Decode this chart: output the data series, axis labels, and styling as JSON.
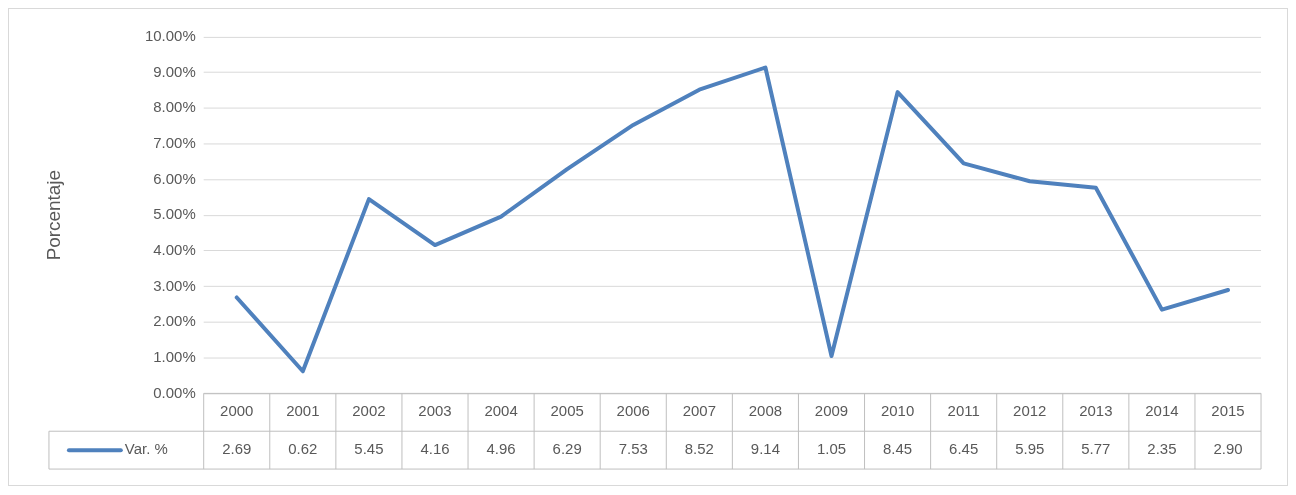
{
  "chart_data": {
    "type": "line",
    "ylabel": "Porcentaje",
    "categories": [
      "2000",
      "2001",
      "2002",
      "2003",
      "2004",
      "2005",
      "2006",
      "2007",
      "2008",
      "2009",
      "2010",
      "2011",
      "2012",
      "2013",
      "2014",
      "2015"
    ],
    "series": [
      {
        "name": "Var. %",
        "color": "#4f81bd",
        "values": [
          2.69,
          0.62,
          5.45,
          4.16,
          4.96,
          6.29,
          7.53,
          8.52,
          9.14,
          1.05,
          8.45,
          6.45,
          5.95,
          5.77,
          2.35,
          2.9
        ],
        "value_labels": [
          "2.69",
          "0.62",
          "5.45",
          "4.16",
          "4.96",
          "6.29",
          "7.53",
          "8.52",
          "9.14",
          "1.05",
          "8.45",
          "6.45",
          "5.95",
          "5.77",
          "2.35",
          "2.90"
        ]
      }
    ],
    "ylim": [
      0,
      10
    ],
    "yticks": [
      {
        "value": 0,
        "label": "0.00%"
      },
      {
        "value": 1,
        "label": "1.00%"
      },
      {
        "value": 2,
        "label": "2.00%"
      },
      {
        "value": 3,
        "label": "3.00%"
      },
      {
        "value": 4,
        "label": "4.00%"
      },
      {
        "value": 5,
        "label": "5.00%"
      },
      {
        "value": 6,
        "label": "6.00%"
      },
      {
        "value": 7,
        "label": "7.00%"
      },
      {
        "value": 8,
        "label": "8.00%"
      },
      {
        "value": 9,
        "label": "9.00%"
      },
      {
        "value": 10,
        "label": "10.00%"
      }
    ],
    "grid": "y",
    "legend": "bottom",
    "marker": "none",
    "line_style": "solid"
  }
}
